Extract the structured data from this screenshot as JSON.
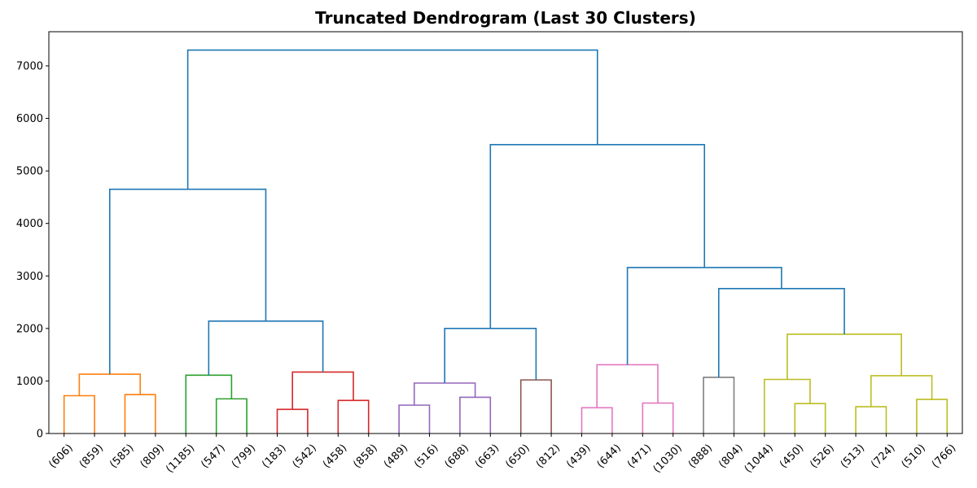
{
  "chart_data": {
    "type": "dendrogram",
    "title": "Truncated Dendrogram (Last 30 Clusters)",
    "xlabel": "",
    "ylabel": "",
    "ylim": [
      0,
      7650
    ],
    "yticks": [
      0,
      1000,
      2000,
      3000,
      4000,
      5000,
      6000,
      7000
    ],
    "grid": false,
    "leaf_labels": [
      "(606)",
      "(859)",
      "(585)",
      "(809)",
      "(1185)",
      "(547)",
      "(799)",
      "(183)",
      "(542)",
      "(458)",
      "(858)",
      "(489)",
      "(516)",
      "(688)",
      "(663)",
      "(650)",
      "(812)",
      "(439)",
      "(644)",
      "(471)",
      "(1030)",
      "(888)",
      "(804)",
      "(1044)",
      "(450)",
      "(526)",
      "(513)",
      "(724)",
      "(510)",
      "(766)"
    ],
    "merges": [
      {
        "left": "L0",
        "right": "L1",
        "height": 720,
        "color": "#ff7f0e"
      },
      {
        "left": "L2",
        "right": "L3",
        "height": 740,
        "color": "#ff7f0e"
      },
      {
        "left": "M0",
        "right": "M1",
        "height": 1130,
        "color": "#ff7f0e"
      },
      {
        "left": "L5",
        "right": "L6",
        "height": 660,
        "color": "#2ca02c"
      },
      {
        "left": "L4",
        "right": "M3",
        "height": 1110,
        "color": "#2ca02c"
      },
      {
        "left": "L7",
        "right": "L8",
        "height": 460,
        "color": "#d62728"
      },
      {
        "left": "L9",
        "right": "L10",
        "height": 630,
        "color": "#d62728"
      },
      {
        "left": "M5",
        "right": "M6",
        "height": 1170,
        "color": "#d62728"
      },
      {
        "left": "M4",
        "right": "M7",
        "height": 2140,
        "color": "#1f77b4"
      },
      {
        "left": "M2",
        "right": "M8",
        "height": 4650,
        "color": "#1f77b4"
      },
      {
        "left": "L11",
        "right": "L12",
        "height": 540,
        "color": "#9467bd"
      },
      {
        "left": "L13",
        "right": "L14",
        "height": 690,
        "color": "#9467bd"
      },
      {
        "left": "M10",
        "right": "M11",
        "height": 960,
        "color": "#9467bd"
      },
      {
        "left": "L15",
        "right": "L16",
        "height": 1020,
        "color": "#8c564b"
      },
      {
        "left": "M12",
        "right": "M13",
        "height": 2000,
        "color": "#1f77b4"
      },
      {
        "left": "L17",
        "right": "L18",
        "height": 490,
        "color": "#e377c2"
      },
      {
        "left": "L19",
        "right": "L20",
        "height": 580,
        "color": "#e377c2"
      },
      {
        "left": "M15",
        "right": "M16",
        "height": 1310,
        "color": "#e377c2"
      },
      {
        "left": "L21",
        "right": "L22",
        "height": 1070,
        "color": "#7f7f7f"
      },
      {
        "left": "L24",
        "right": "L25",
        "height": 570,
        "color": "#bcbd22"
      },
      {
        "left": "L23",
        "right": "M19",
        "height": 1030,
        "color": "#bcbd22"
      },
      {
        "left": "L26",
        "right": "L27",
        "height": 510,
        "color": "#bcbd22"
      },
      {
        "left": "L28",
        "right": "L29",
        "height": 650,
        "color": "#bcbd22"
      },
      {
        "left": "M21",
        "right": "M22",
        "height": 1100,
        "color": "#bcbd22"
      },
      {
        "left": "M20",
        "right": "M23",
        "height": 1890,
        "color": "#bcbd22"
      },
      {
        "left": "M18",
        "right": "M24",
        "height": 2760,
        "color": "#1f77b4"
      },
      {
        "left": "M17",
        "right": "M25",
        "height": 3160,
        "color": "#1f77b4"
      },
      {
        "left": "M14",
        "right": "M26",
        "height": 5500,
        "color": "#1f77b4"
      },
      {
        "left": "M9",
        "right": "M27",
        "height": 7300,
        "color": "#1f77b4"
      }
    ]
  }
}
